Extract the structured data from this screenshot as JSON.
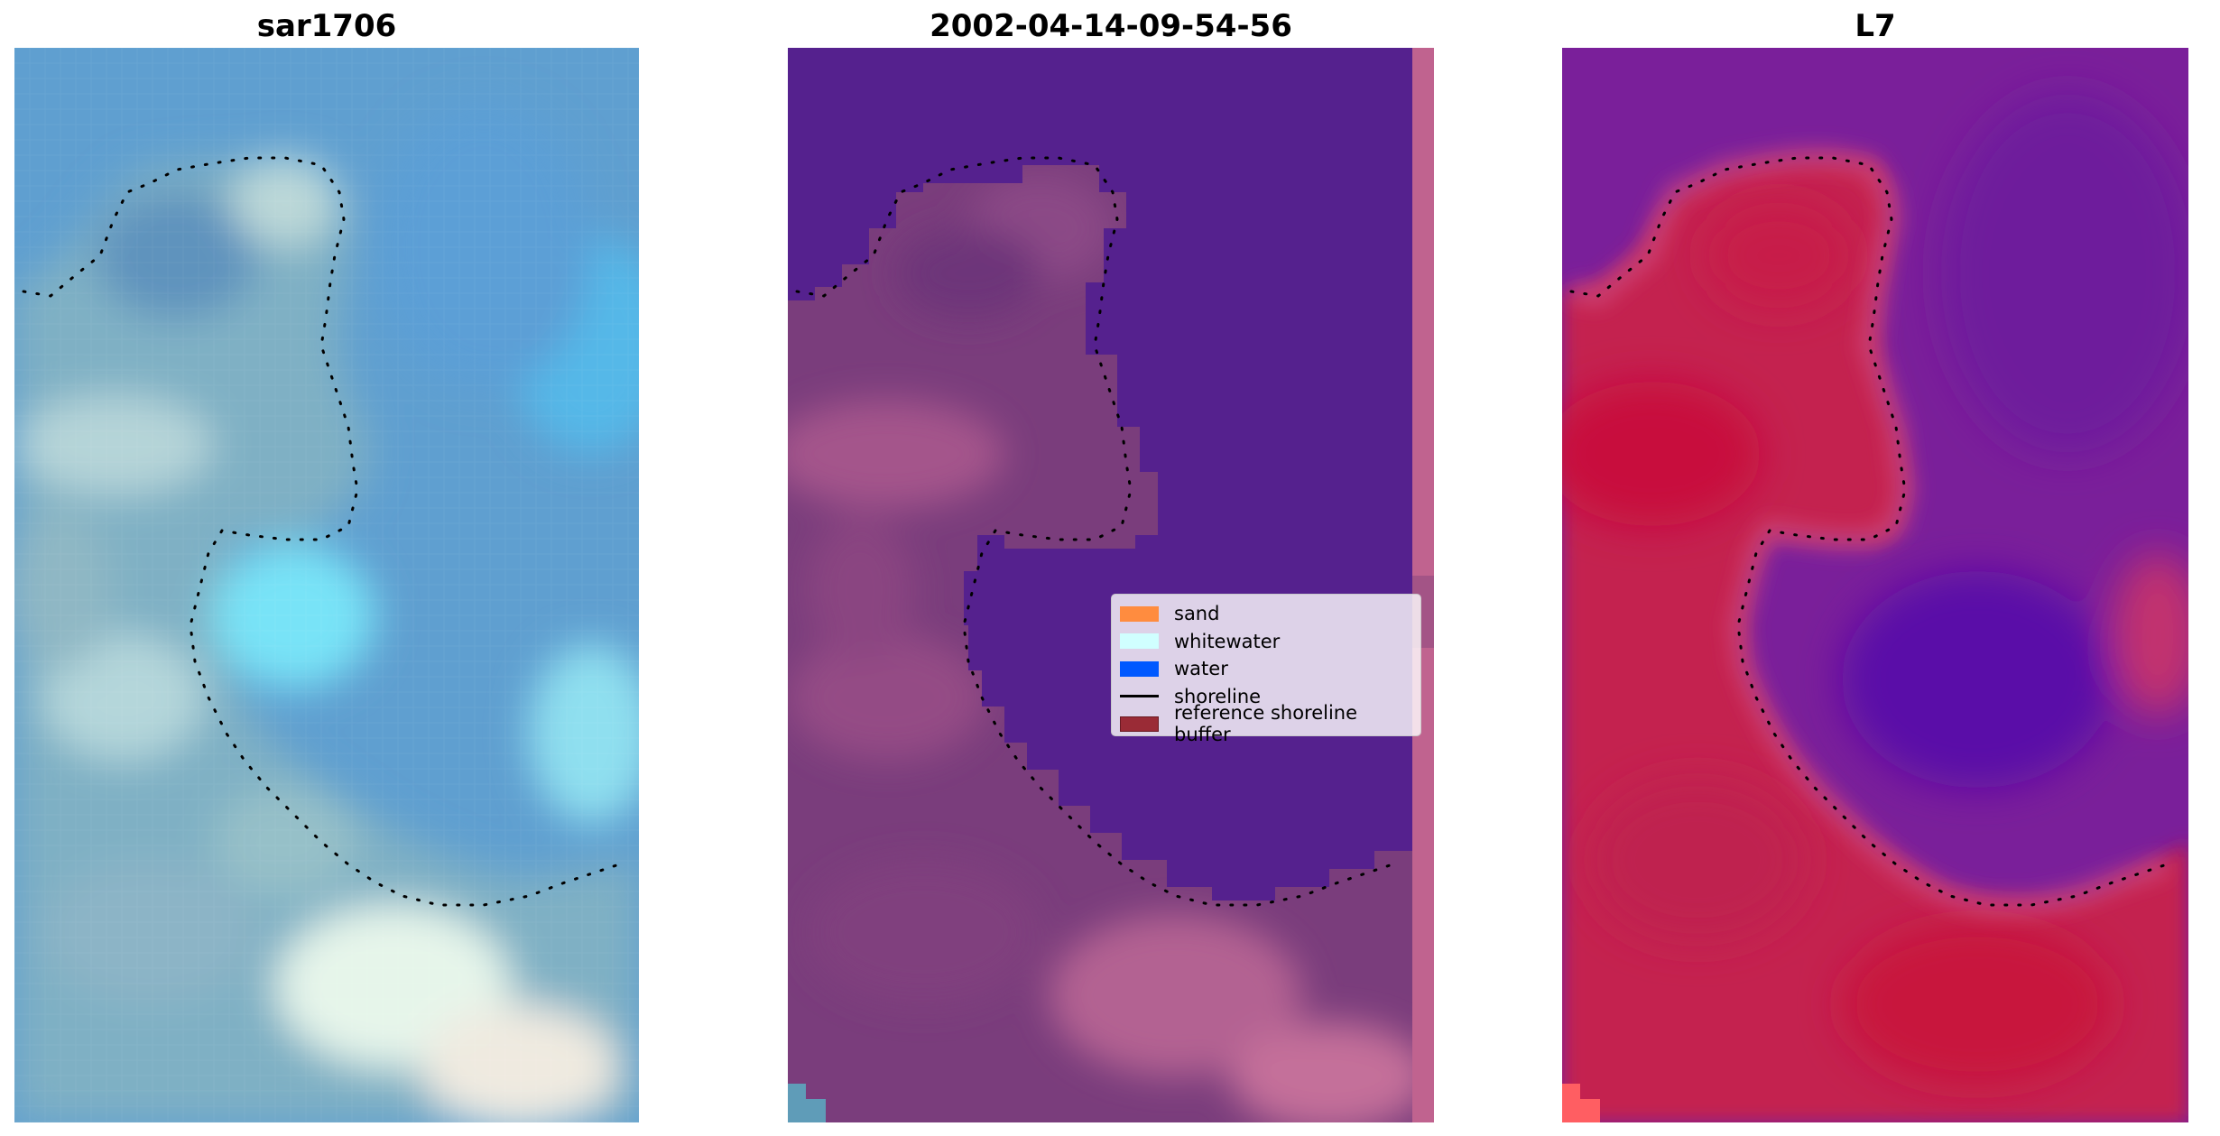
{
  "panels": [
    {
      "title": "sar1706"
    },
    {
      "title": "2002-04-14-09-54-56"
    },
    {
      "title": "L7"
    }
  ],
  "legend": {
    "placement": "center-right of middle panel",
    "items": [
      {
        "label": "sand",
        "color": "#ff8c3f",
        "kind": "patch"
      },
      {
        "label": "whitewater",
        "color": "#d0ffff",
        "kind": "patch"
      },
      {
        "label": "water",
        "color": "#0059ff",
        "kind": "patch"
      },
      {
        "label": "shoreline",
        "color": "#000000",
        "kind": "line"
      },
      {
        "label": "reference shoreline buffer",
        "color": "#9a2b36",
        "kind": "patch"
      }
    ]
  },
  "colors": {
    "rgb_water": "#5b9bd0",
    "rgb_light_water": "#73e0f6",
    "rgb_land": "#9cc5c8",
    "class_water": "#55218e",
    "class_land": "#7a3d7c",
    "class_land_light": "#a9568d",
    "mndwi_land": "#c41e4a",
    "mndwi_water": "#6b1f9e",
    "shoreline_points": "#000000"
  },
  "icons": {
    "shoreline_marker": "dotted-shoreline-icon"
  }
}
